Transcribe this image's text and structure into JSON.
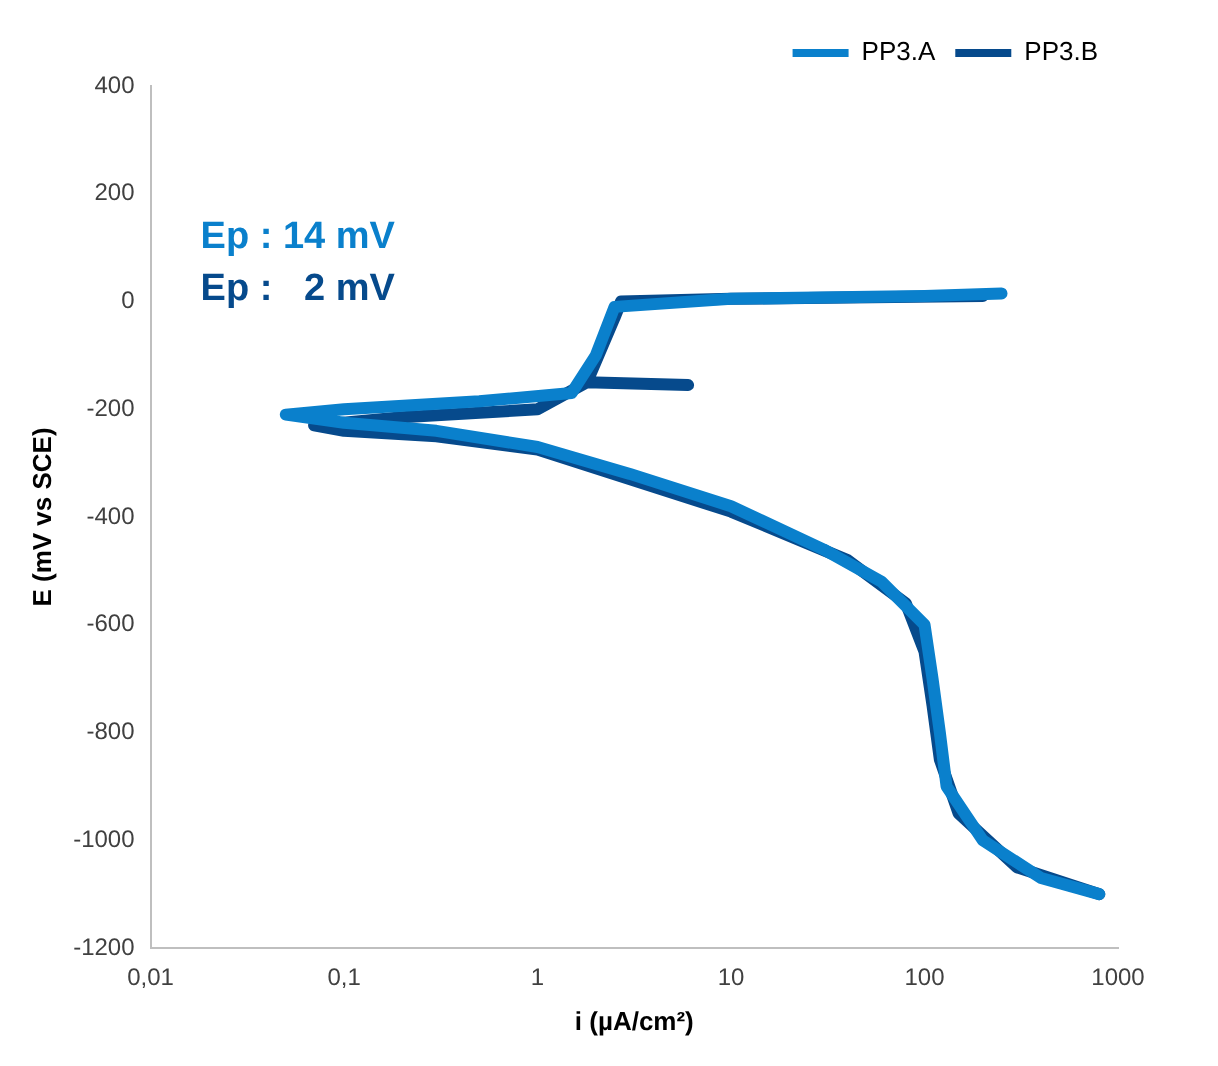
{
  "chart_data": {
    "type": "line",
    "xlabel": "i (µA/cm²)",
    "ylabel": "E (mV vs SCE)",
    "log": "x",
    "xlim": [
      0.01,
      1000
    ],
    "xticks": [
      {
        "value": 0.01,
        "label": "0,01"
      },
      {
        "value": 0.1,
        "label": "0,1"
      },
      1,
      10,
      100,
      1000
    ],
    "ylim": [
      -1200,
      400
    ],
    "yticks": [
      -1200,
      -1000,
      -800,
      -600,
      -400,
      -200,
      0,
      200,
      400
    ],
    "grid": false,
    "legend": "top right",
    "marker": "none",
    "line_style": "solid",
    "annotations": [
      "Ep : 14 mV",
      "Ep :   2 mV"
    ],
    "series": [
      {
        "name": "PP3.A",
        "color": "#0a80cc",
        "x": [
          800,
          400,
          200,
          130,
          120,
          110,
          100,
          60,
          30,
          10,
          3,
          1,
          0.3,
          0.1,
          0.05,
          0.1,
          0.5,
          1.5,
          2,
          2.5,
          10,
          100,
          250
        ],
        "values": [
          -1100,
          -1070,
          -1000,
          -900,
          -800,
          -700,
          -600,
          -520,
          -460,
          -380,
          -320,
          -270,
          -240,
          -225,
          -210,
          -200,
          -185,
          -170,
          -100,
          -10,
          5,
          10,
          15
        ]
      },
      {
        "name": "PP3.B",
        "color": "#064a8c",
        "x": [
          800,
          300,
          150,
          120,
          110,
          100,
          80,
          40,
          10,
          1,
          0.3,
          0.1,
          0.07,
          0.2,
          1,
          1.8,
          6,
          1.8,
          2.5,
          2.7,
          10,
          200
        ],
        "values": [
          -1100,
          -1050,
          -950,
          -850,
          -750,
          -650,
          -560,
          -480,
          -390,
          -275,
          -250,
          -240,
          -230,
          -215,
          -200,
          -150,
          -155,
          -150,
          -30,
          0,
          5,
          10
        ]
      }
    ]
  }
}
